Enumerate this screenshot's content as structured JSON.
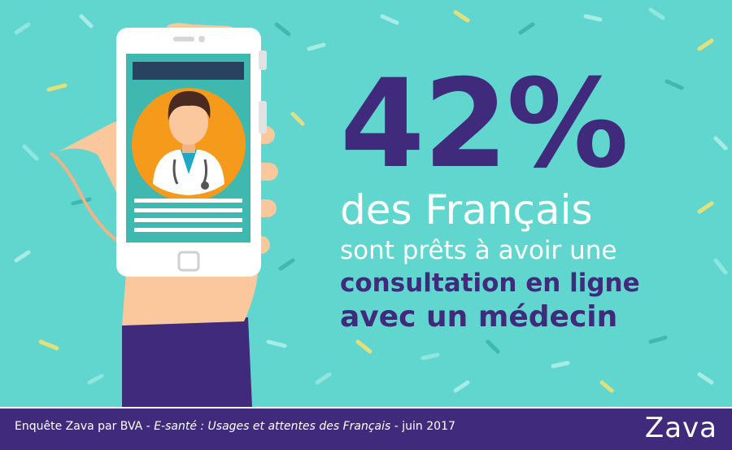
{
  "headline": {
    "percent": "42%",
    "line1": "des Français",
    "line2": "sont prêts à avoir une",
    "line3": "consultation en ligne",
    "line4": "avec un médecin"
  },
  "footer": {
    "source_prefix": "Enquête Zava par BVA - ",
    "source_title": "E-santé : Usages et attentes des Français",
    "source_suffix": " - juin 2017",
    "logo": "Zava"
  },
  "colors": {
    "background": "#61d6cf",
    "accent_purple": "#3f2a7c",
    "orange": "#f59a1b",
    "skin": "#fbc79c"
  },
  "icons": [
    "smartphone-icon",
    "hand-icon",
    "doctor-avatar-icon",
    "home-button-icon"
  ]
}
